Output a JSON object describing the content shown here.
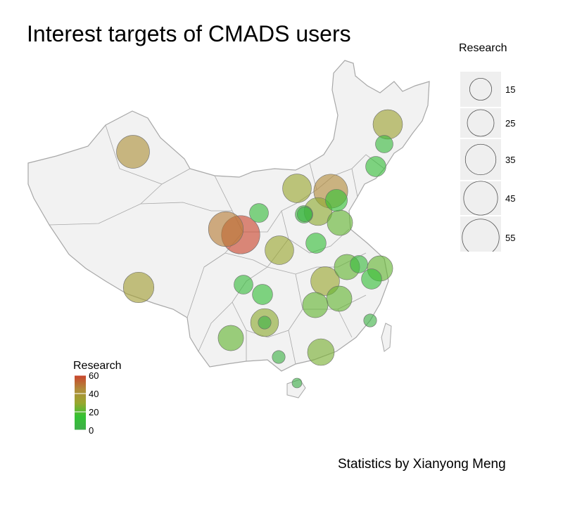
{
  "title": "Interest targets of CMADS users",
  "credit": "Statistics by Xianyong Meng",
  "legend_size": {
    "title": "Research",
    "entries": [
      15,
      25,
      35,
      45,
      55
    ]
  },
  "legend_color": {
    "title": "Research",
    "ticks": [
      0,
      20,
      40,
      60
    ],
    "gradient": [
      "#3fae4a",
      "#33c233",
      "#9aa62e",
      "#b18a3a",
      "#c9442c"
    ]
  },
  "colors": {
    "land": "#f2f2f2",
    "border": "#a8a8a8"
  },
  "chart_data": {
    "type": "bubble-map",
    "metric": "Research",
    "points": [
      {
        "region": "Xinjiang",
        "value": 42
      },
      {
        "region": "Tibet",
        "value": 35
      },
      {
        "region": "Qinghai",
        "value": 48
      },
      {
        "region": "Gansu",
        "value": 60
      },
      {
        "region": "Sichuan",
        "value": 30
      },
      {
        "region": "Ningxia",
        "value": 10
      },
      {
        "region": "Inner Mongolia",
        "value": 30
      },
      {
        "region": "Beijing",
        "value": 45
      },
      {
        "region": "Tianjin",
        "value": 15
      },
      {
        "region": "Hebei",
        "value": 28
      },
      {
        "region": "Shanxi",
        "value": 5
      },
      {
        "region": "Heilongjiang",
        "value": 32
      },
      {
        "region": "Jilin",
        "value": 8
      },
      {
        "region": "Liaoning",
        "value": 12
      },
      {
        "region": "Shandong",
        "value": 22
      },
      {
        "region": "Henan",
        "value": 12
      },
      {
        "region": "Shaanxi",
        "value": 30
      },
      {
        "region": "Jiangsu",
        "value": 22
      },
      {
        "region": "Shanghai",
        "value": 8
      },
      {
        "region": "Zhejiang",
        "value": 12
      },
      {
        "region": "Anhui",
        "value": 22
      },
      {
        "region": "Hubei",
        "value": 22
      },
      {
        "region": "Chongqing",
        "value": 10
      },
      {
        "region": "Guizhou",
        "value": 12
      },
      {
        "region": "Hunan",
        "value": 22
      },
      {
        "region": "Jiangxi",
        "value": 22
      },
      {
        "region": "Yunnan",
        "value": 25
      },
      {
        "region": "Guangxi",
        "value": 3
      },
      {
        "region": "Guangdong",
        "value": 28
      },
      {
        "region": "Fujian",
        "value": 3
      },
      {
        "region": "Hainan",
        "value": 1
      },
      {
        "region": "Chongqing-2",
        "value": 3
      },
      {
        "region": "Tianjin-2",
        "value": 8
      }
    ]
  }
}
